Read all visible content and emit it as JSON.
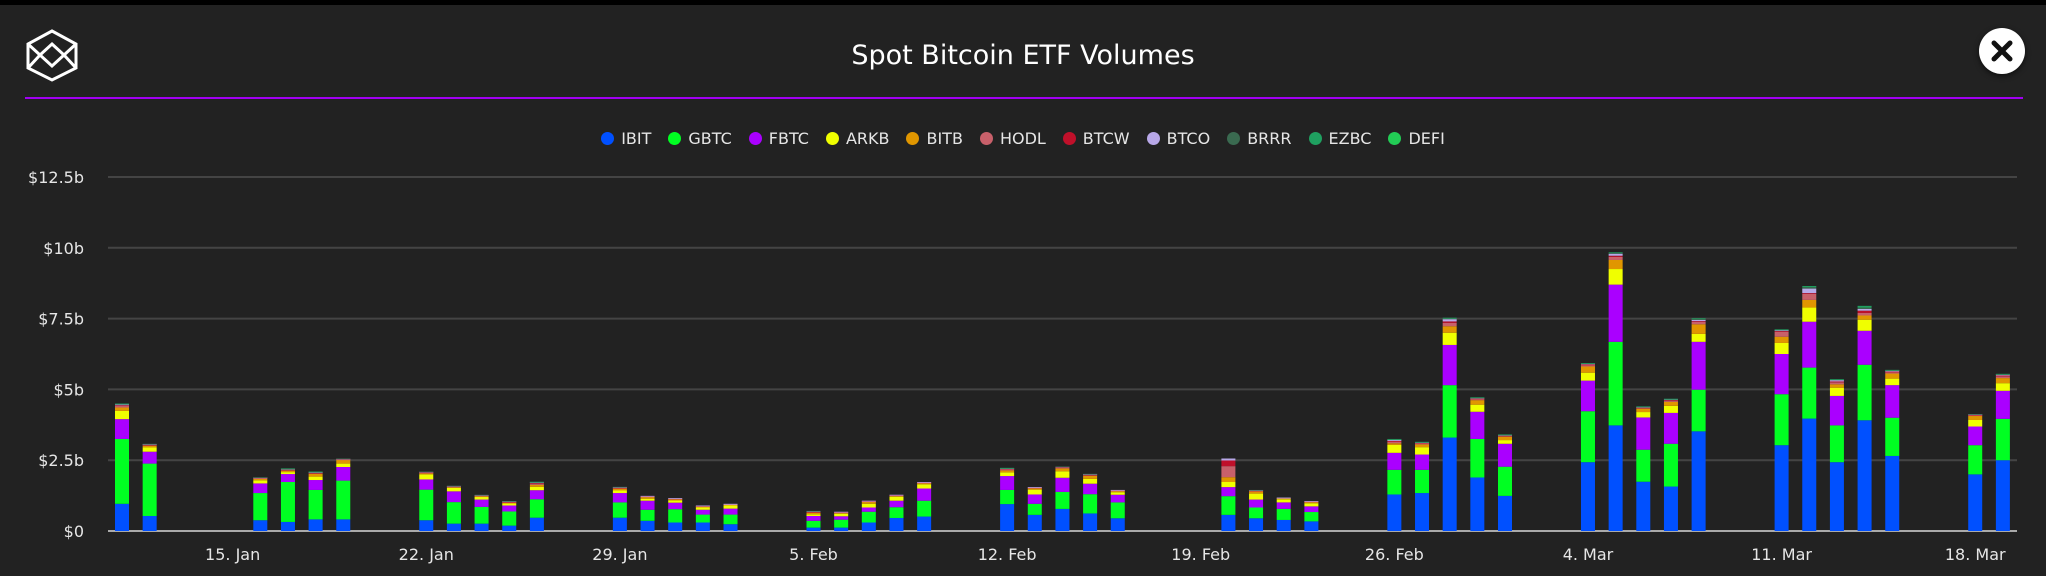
{
  "header": {
    "title": "Spot Bitcoin ETF Volumes",
    "close_icon": "close-x-icon",
    "logo_icon": "cube-logo-icon"
  },
  "colors": {
    "divider": "#a100f2",
    "background": "#222222"
  },
  "chart_data": {
    "type": "bar",
    "stacked": true,
    "title": "Spot Bitcoin ETF Volumes",
    "xlabel": "",
    "ylabel": "",
    "ylim": [
      0,
      12.5
    ],
    "y_ticks": [
      "$0",
      "$2.5b",
      "$5b",
      "$7.5b",
      "$10b",
      "$12.5b"
    ],
    "x_ticks": [
      "15. Jan",
      "22. Jan",
      "29. Jan",
      "5. Feb",
      "12. Feb",
      "19. Feb",
      "26. Feb",
      "4. Mar",
      "11. Mar",
      "18. Mar"
    ],
    "grid": true,
    "legend_position": "top",
    "unit": "USD billions",
    "dates": [
      "01-11",
      "01-12",
      "01-16",
      "01-17",
      "01-18",
      "01-19",
      "01-22",
      "01-23",
      "01-24",
      "01-25",
      "01-26",
      "01-29",
      "01-30",
      "01-31",
      "02-01",
      "02-02",
      "02-05",
      "02-06",
      "02-07",
      "02-08",
      "02-09",
      "02-12",
      "02-13",
      "02-14",
      "02-15",
      "02-16",
      "02-20",
      "02-21",
      "02-22",
      "02-23",
      "02-26",
      "02-27",
      "02-28",
      "02-29",
      "03-01",
      "03-04",
      "03-05",
      "03-06",
      "03-07",
      "03-08",
      "03-11",
      "03-12",
      "03-13",
      "03-14",
      "03-15",
      "03-18",
      "03-19"
    ],
    "series": [
      {
        "name": "IBIT",
        "color": "#0050ff",
        "values": [
          0.96,
          0.53,
          0.38,
          0.32,
          0.41,
          0.41,
          0.38,
          0.26,
          0.26,
          0.19,
          0.47,
          0.47,
          0.36,
          0.3,
          0.3,
          0.24,
          0.12,
          0.12,
          0.3,
          0.46,
          0.51,
          0.95,
          0.57,
          0.78,
          0.62,
          0.45,
          0.57,
          0.45,
          0.39,
          0.34,
          1.29,
          1.34,
          3.3,
          1.89,
          1.24,
          2.43,
          3.73,
          1.74,
          1.57,
          3.52,
          3.03,
          3.97,
          2.43,
          3.91,
          2.65,
          2.0,
          2.5
        ]
      },
      {
        "name": "GBTC",
        "color": "#00ff22",
        "values": [
          2.29,
          1.85,
          0.96,
          1.41,
          1.04,
          1.37,
          1.08,
          0.76,
          0.59,
          0.5,
          0.65,
          0.54,
          0.39,
          0.47,
          0.28,
          0.34,
          0.24,
          0.28,
          0.38,
          0.38,
          0.56,
          0.5,
          0.39,
          0.6,
          0.68,
          0.56,
          0.66,
          0.38,
          0.39,
          0.33,
          0.87,
          0.82,
          1.85,
          1.36,
          1.03,
          1.8,
          2.95,
          1.13,
          1.51,
          1.47,
          1.8,
          1.8,
          1.3,
          1.96,
          1.35,
          1.03,
          1.46
        ]
      },
      {
        "name": "FBTC",
        "color": "#aa00ff",
        "values": [
          0.7,
          0.42,
          0.34,
          0.28,
          0.35,
          0.48,
          0.36,
          0.38,
          0.26,
          0.21,
          0.32,
          0.33,
          0.32,
          0.23,
          0.17,
          0.21,
          0.17,
          0.12,
          0.15,
          0.23,
          0.43,
          0.49,
          0.33,
          0.5,
          0.37,
          0.27,
          0.32,
          0.28,
          0.23,
          0.2,
          0.6,
          0.54,
          1.42,
          0.96,
          0.81,
          1.08,
          2.02,
          1.14,
          1.09,
          1.69,
          1.42,
          1.62,
          1.04,
          1.2,
          1.15,
          0.66,
          0.99
        ]
      },
      {
        "name": "ARKB",
        "color": "#f0ff00",
        "values": [
          0.29,
          0.15,
          0.11,
          0.07,
          0.12,
          0.12,
          0.18,
          0.12,
          0.09,
          0.07,
          0.12,
          0.09,
          0.07,
          0.08,
          0.08,
          0.11,
          0.06,
          0.09,
          0.13,
          0.14,
          0.15,
          0.13,
          0.17,
          0.23,
          0.17,
          0.09,
          0.18,
          0.21,
          0.11,
          0.11,
          0.28,
          0.26,
          0.43,
          0.25,
          0.13,
          0.28,
          0.55,
          0.19,
          0.25,
          0.28,
          0.39,
          0.5,
          0.29,
          0.39,
          0.23,
          0.23,
          0.27
        ]
      },
      {
        "name": "BITB",
        "color": "#e09600",
        "values": [
          0.12,
          0.06,
          0.06,
          0.05,
          0.1,
          0.13,
          0.04,
          0.03,
          0.03,
          0.03,
          0.07,
          0.07,
          0.06,
          0.05,
          0.04,
          0.04,
          0.06,
          0.04,
          0.07,
          0.04,
          0.05,
          0.07,
          0.06,
          0.1,
          0.11,
          0.05,
          0.17,
          0.08,
          0.04,
          0.05,
          0.06,
          0.1,
          0.23,
          0.16,
          0.12,
          0.22,
          0.32,
          0.12,
          0.14,
          0.34,
          0.22,
          0.27,
          0.12,
          0.15,
          0.18,
          0.14,
          0.18
        ]
      },
      {
        "name": "HODL",
        "color": "#c8606a",
        "values": [
          0.06,
          0.03,
          0.02,
          0.03,
          0.03,
          0.02,
          0.02,
          0.02,
          0.02,
          0.02,
          0.04,
          0.02,
          0.02,
          0.01,
          0.01,
          0.01,
          0.02,
          0.01,
          0.02,
          0.01,
          0.01,
          0.04,
          0.01,
          0.03,
          0.03,
          0.01,
          0.39,
          0.02,
          0.01,
          0.01,
          0.06,
          0.04,
          0.12,
          0.04,
          0.03,
          0.05,
          0.11,
          0.03,
          0.04,
          0.08,
          0.18,
          0.21,
          0.07,
          0.09,
          0.05,
          0.03,
          0.06
        ]
      },
      {
        "name": "BTCW",
        "color": "#c0102a",
        "values": [
          0.02,
          0.01,
          0.01,
          0.01,
          0.01,
          0.01,
          0.01,
          0.01,
          0.01,
          0.01,
          0.02,
          0.01,
          0.01,
          0.01,
          0.01,
          0.0,
          0.01,
          0.01,
          0.01,
          0.01,
          0.01,
          0.01,
          0.01,
          0.01,
          0.01,
          0.01,
          0.2,
          0.01,
          0.0,
          0.01,
          0.02,
          0.01,
          0.05,
          0.02,
          0.01,
          0.02,
          0.04,
          0.01,
          0.02,
          0.03,
          0.02,
          0.03,
          0.03,
          0.08,
          0.02,
          0.01,
          0.03
        ]
      },
      {
        "name": "BTCO",
        "color": "#b8a8e8",
        "values": [
          0.03,
          0.02,
          0.01,
          0.02,
          0.02,
          0.01,
          0.02,
          0.01,
          0.01,
          0.02,
          0.03,
          0.02,
          0.01,
          0.01,
          0.01,
          0.01,
          0.02,
          0.01,
          0.01,
          0.01,
          0.01,
          0.02,
          0.01,
          0.02,
          0.02,
          0.01,
          0.07,
          0.01,
          0.01,
          0.01,
          0.04,
          0.02,
          0.08,
          0.02,
          0.02,
          0.03,
          0.07,
          0.02,
          0.03,
          0.05,
          0.04,
          0.16,
          0.05,
          0.06,
          0.04,
          0.02,
          0.03
        ]
      },
      {
        "name": "BRRR",
        "color": "#3a6a50",
        "values": [
          0.02,
          0.01,
          0.01,
          0.01,
          0.01,
          0.01,
          0.01,
          0.01,
          0.01,
          0.01,
          0.01,
          0.01,
          0.0,
          0.0,
          0.0,
          0.0,
          0.01,
          0.0,
          0.0,
          0.0,
          0.0,
          0.01,
          0.0,
          0.01,
          0.01,
          0.0,
          0.0,
          0.01,
          0.0,
          0.0,
          0.02,
          0.01,
          0.03,
          0.01,
          0.01,
          0.01,
          0.03,
          0.01,
          0.01,
          0.02,
          0.01,
          0.05,
          0.02,
          0.05,
          0.01,
          0.01,
          0.02
        ]
      },
      {
        "name": "EZBC",
        "color": "#1fa060",
        "values": [
          0.01,
          0.0,
          0.0,
          0.01,
          0.01,
          0.0,
          0.0,
          0.0,
          0.0,
          0.0,
          0.01,
          0.0,
          0.0,
          0.0,
          0.0,
          0.0,
          0.0,
          0.0,
          0.0,
          0.0,
          0.0,
          0.01,
          0.0,
          0.0,
          0.0,
          0.0,
          0.0,
          0.0,
          0.0,
          0.0,
          0.01,
          0.01,
          0.02,
          0.01,
          0.01,
          0.01,
          0.02,
          0.01,
          0.01,
          0.03,
          0.01,
          0.04,
          0.01,
          0.06,
          0.01,
          0.0,
          0.01
        ]
      },
      {
        "name": "DEFI",
        "color": "#22cc55",
        "values": [
          0,
          0,
          0,
          0,
          0,
          0,
          0,
          0,
          0,
          0,
          0,
          0,
          0,
          0,
          0,
          0,
          0,
          0,
          0,
          0,
          0,
          0,
          0,
          0,
          0,
          0,
          0,
          0,
          0,
          0,
          0,
          0,
          0,
          0,
          0,
          0,
          0,
          0,
          0,
          0,
          0,
          0,
          0,
          0,
          0,
          0,
          0
        ]
      }
    ]
  }
}
